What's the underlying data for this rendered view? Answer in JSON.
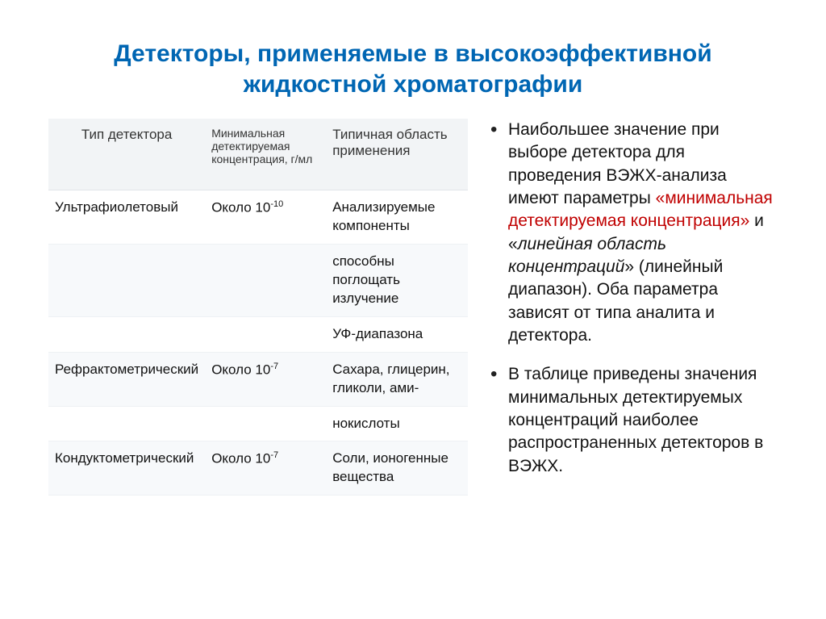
{
  "title": "Детекторы, применяемые в высокоэффективной жидкостной хроматографии",
  "table": {
    "headers": {
      "c1": "Тип детектора",
      "c2": "Минимальная детектируемая концентрация, г/мл",
      "c3": "Типичная область применения"
    },
    "rows": [
      {
        "c1": "Ультрафиолетовый",
        "c2_base": "Около 10",
        "c2_exp": "-10",
        "c3": "Анализируемые компоненты"
      },
      {
        "c1": "",
        "c2_base": "",
        "c2_exp": "",
        "c3": "способны поглощать излучение"
      },
      {
        "c1": "",
        "c2_base": "",
        "c2_exp": "",
        "c3": "УФ-диапазона"
      },
      {
        "c1": "Рефрактометрический",
        "c2_base": "Около 10",
        "c2_exp": "-7",
        "c3": "Сахара, глицерин, гликоли, ами-"
      },
      {
        "c1": "",
        "c2_base": "",
        "c2_exp": "",
        "c3": "нокислоты"
      },
      {
        "c1": "Кондуктометрический",
        "c2_base": "Около 10",
        "c2_exp": "-7",
        "c3": "Соли, ионогенные вещества"
      }
    ]
  },
  "bullets": {
    "b1": {
      "p1": "Наибольшее значение при выборе детектора для проведения ВЭЖХ-анализа имеют параметры ",
      "red": "«минимальная детектируемая концентрация»",
      "p2": " и «",
      "ital": "линейная область концентраций",
      "p3": "» (линейный диапазон). Оба параметра зависят от типа аналита и детектора."
    },
    "b2": "В таблице приведены значения минимальных детектируемых концентраций наиболее распространенных детекторов в ВЭЖХ."
  },
  "colors": {
    "title": "#0066b3",
    "red": "#c00000",
    "tableHeaderBg": "#f2f4f6",
    "rowAlt": "#f7f9fb",
    "text": "#111111",
    "background": "#ffffff"
  }
}
